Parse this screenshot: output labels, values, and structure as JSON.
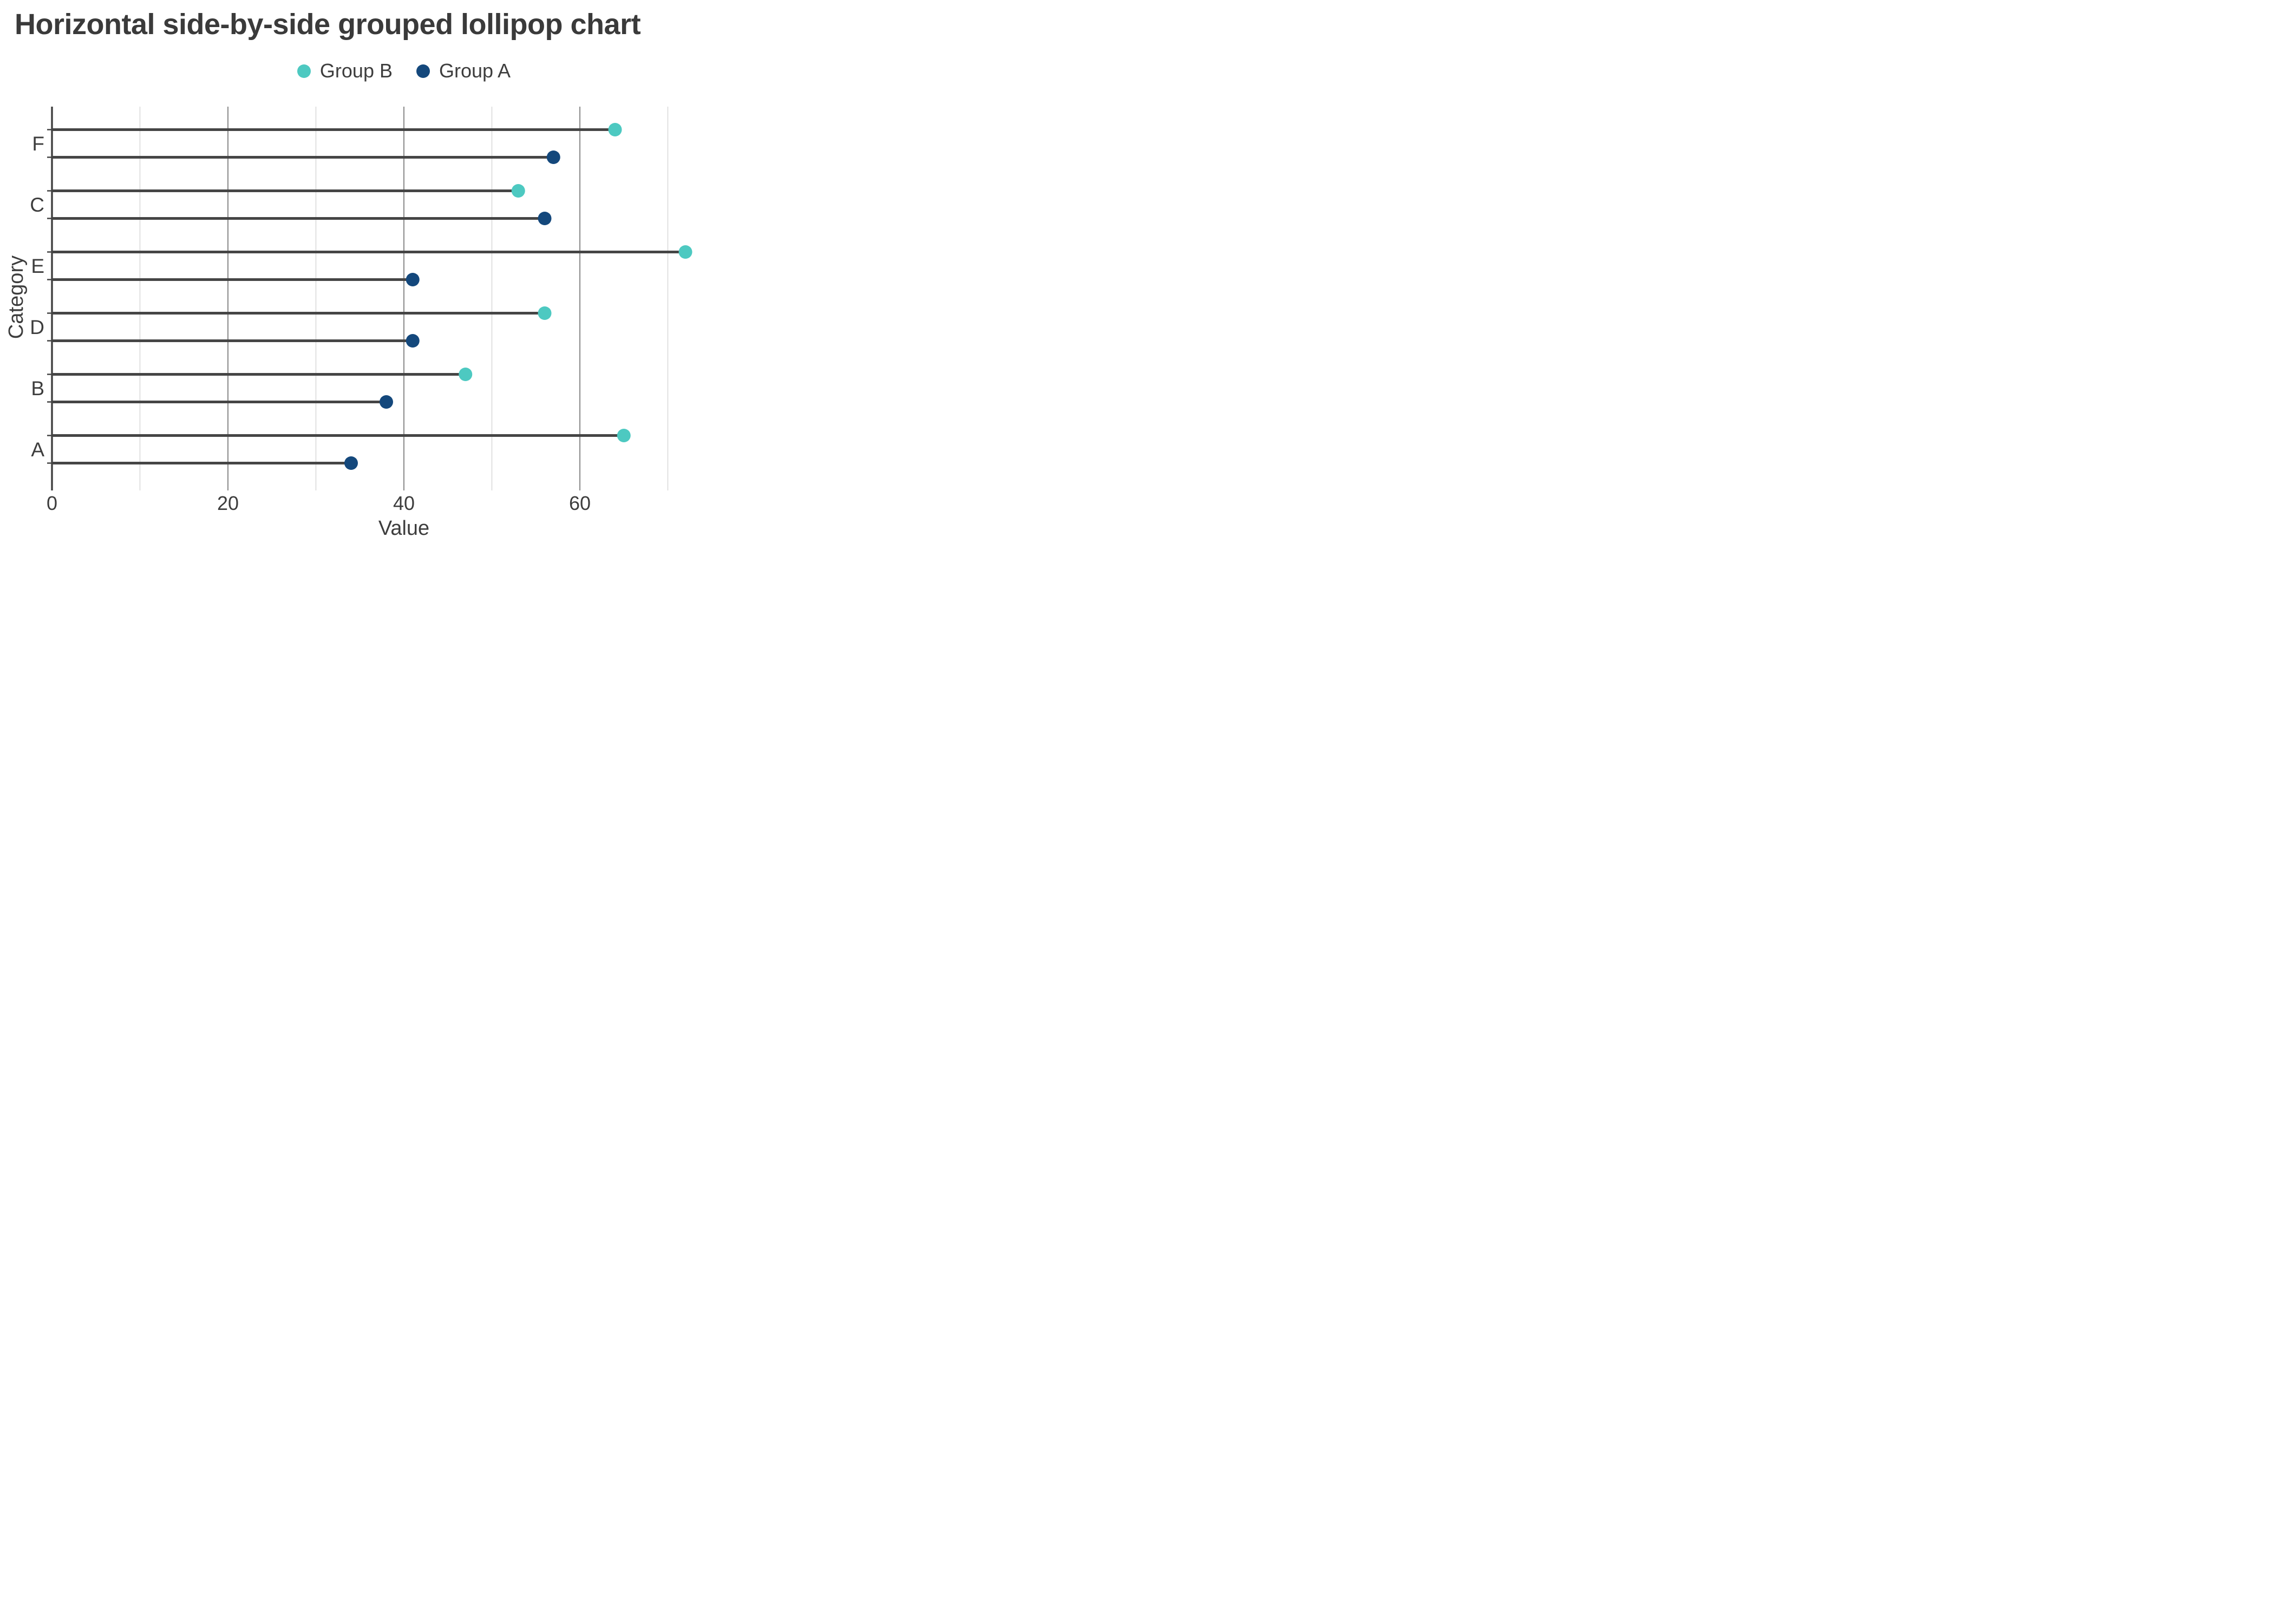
{
  "title": "Horizontal side-by-side grouped lollipop chart",
  "legend": [
    {
      "label": "Group B",
      "color": "#4dc9c1"
    },
    {
      "label": "Group A",
      "color": "#14487c"
    }
  ],
  "chart_data": {
    "type": "bar",
    "variant": "horizontal side-by-side grouped lollipop",
    "categories": [
      "F",
      "C",
      "E",
      "D",
      "B",
      "A"
    ],
    "series": [
      {
        "name": "Group B",
        "color": "#4dc9c1",
        "values": [
          64,
          53,
          72,
          56,
          47,
          65
        ]
      },
      {
        "name": "Group A",
        "color": "#14487c",
        "values": [
          57,
          56,
          41,
          41,
          38,
          34
        ]
      }
    ],
    "xlabel": "Value",
    "ylabel": "Category",
    "xlim": [
      0,
      80
    ],
    "xtick_labels": [
      0,
      20,
      40,
      60
    ],
    "gridline_step": 10,
    "gridline_max": 70,
    "grid": true,
    "legend_position": "top-center",
    "colors": {
      "stick": "#454545",
      "axis": "#444444",
      "grid_major": "#757575",
      "grid_minor": "#cccccc",
      "text": "#3d3d3d"
    }
  }
}
